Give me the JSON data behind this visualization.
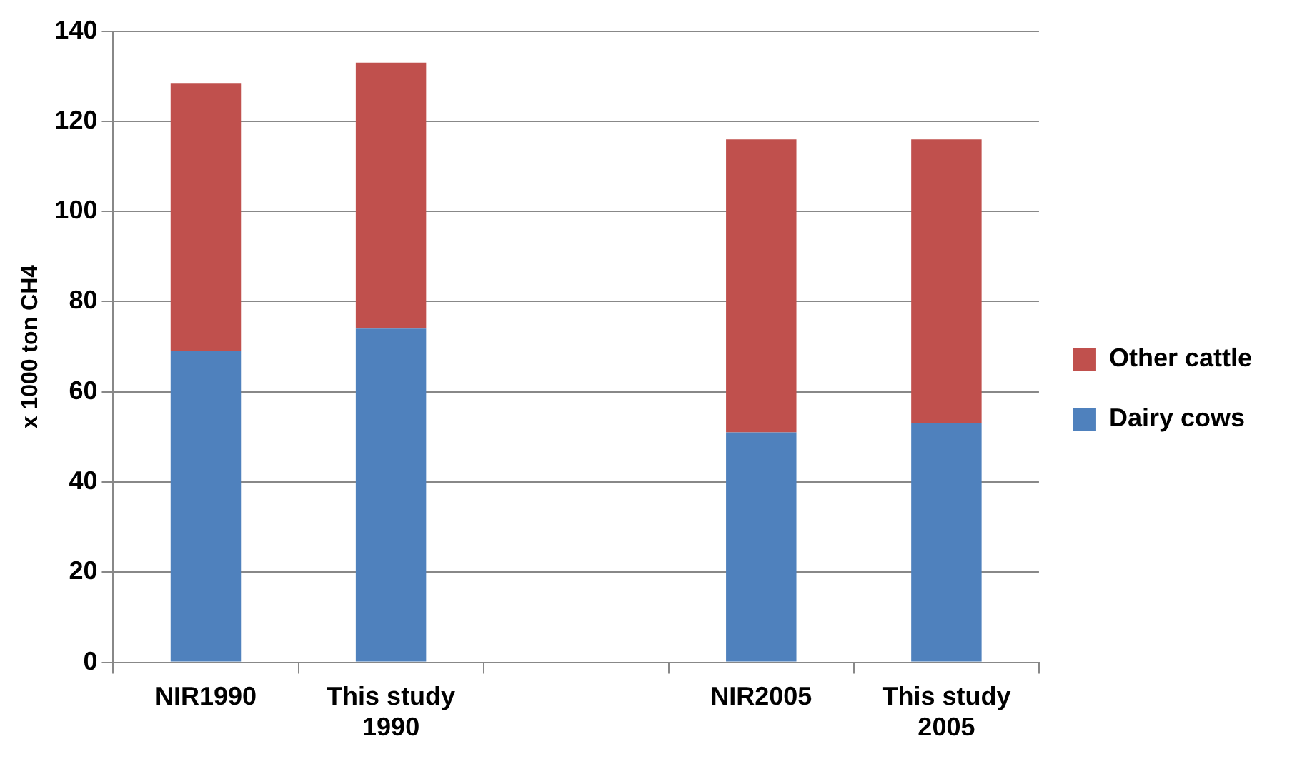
{
  "chart_data": {
    "type": "bar",
    "ylabel": "x 1000 ton CH4",
    "categories": [
      "NIR1990",
      "This study 1990",
      null,
      "NIR2005",
      "This study 2005"
    ],
    "series": [
      {
        "name": "Dairy cows",
        "color": "#4f81bd",
        "values": [
          69,
          74,
          null,
          51,
          53
        ]
      },
      {
        "name": "Other cattle",
        "color": "#c0504d",
        "values": [
          59.5,
          59,
          null,
          65,
          63
        ]
      }
    ],
    "stacked": true,
    "ylim": [
      0,
      140
    ],
    "yticks": [
      0,
      20,
      40,
      60,
      80,
      100,
      120,
      140
    ],
    "grid": "y",
    "legend": "right"
  }
}
